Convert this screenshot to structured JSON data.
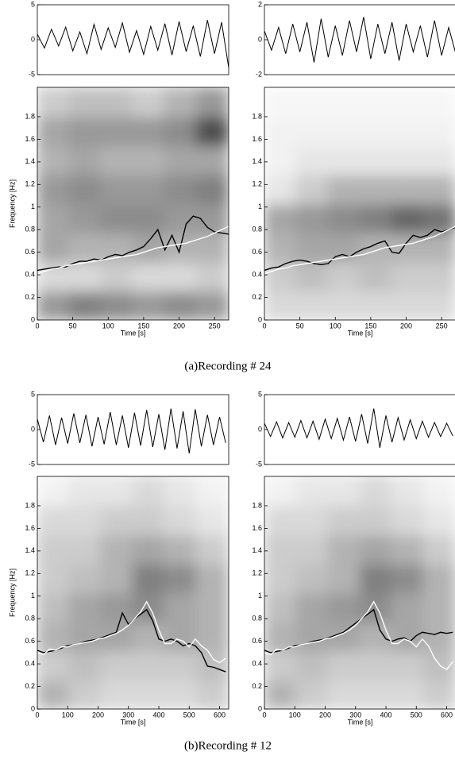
{
  "captions": [
    "(a)Recording # 24",
    "(b)Recording # 12"
  ],
  "chart_data": [
    {
      "type": "line",
      "xlim": [
        0,
        270
      ],
      "ylim": [
        -5,
        5
      ],
      "yticks": [
        -5,
        0,
        5
      ],
      "x": [
        0,
        10,
        20,
        30,
        40,
        50,
        60,
        70,
        80,
        90,
        100,
        110,
        120,
        130,
        140,
        150,
        160,
        170,
        180,
        190,
        200,
        210,
        220,
        230,
        240,
        250,
        260,
        270
      ],
      "series": [
        {
          "color": "#000000",
          "values": [
            0.8,
            -1.2,
            1.5,
            -0.9,
            1.8,
            -1.6,
            1.1,
            -2.0,
            2.2,
            -1.4,
            1.7,
            -1.1,
            2.4,
            -1.8,
            1.3,
            -2.1,
            1.9,
            -1.5,
            2.3,
            -2.2,
            2.6,
            -1.7,
            2.0,
            -2.4,
            2.8,
            -2.0,
            2.5,
            -4.0
          ]
        }
      ]
    },
    {
      "type": "line",
      "xlim": [
        0,
        270
      ],
      "ylim": [
        -2,
        2
      ],
      "yticks": [
        -2,
        0,
        2
      ],
      "x": [
        0,
        10,
        20,
        30,
        40,
        50,
        60,
        70,
        80,
        90,
        100,
        110,
        120,
        130,
        140,
        150,
        160,
        170,
        180,
        190,
        200,
        210,
        220,
        230,
        240,
        250,
        260,
        270
      ],
      "series": [
        {
          "color": "#000000",
          "values": [
            0.5,
            -0.6,
            0.7,
            -0.8,
            0.9,
            -0.7,
            1.0,
            -1.3,
            1.2,
            -1.0,
            0.8,
            -0.9,
            1.1,
            -0.7,
            1.3,
            -1.1,
            0.9,
            -0.8,
            1.0,
            -1.2,
            0.9,
            -0.7,
            0.8,
            -1.0,
            1.1,
            -0.9,
            0.7,
            -0.8
          ]
        }
      ]
    },
    {
      "type": "heatmap",
      "xlabel": "Time [s]",
      "ylabel": "Frequency [Hz]",
      "xlim": [
        0,
        270
      ],
      "ylim": [
        0,
        2.06
      ],
      "xticks": [
        0,
        50,
        100,
        150,
        200,
        250
      ],
      "yticks": [
        0,
        0.2,
        0.4,
        0.6,
        0.8,
        1,
        1.2,
        1.4,
        1.6,
        1.8
      ],
      "z": [
        [
          0.4,
          0.5,
          0.45,
          0.4,
          0.45,
          0.4
        ],
        [
          0.15,
          0.15,
          0.2,
          0.15,
          0.15,
          0.2
        ],
        [
          0.35,
          0.3,
          0.3,
          0.35,
          0.3,
          0.3
        ],
        [
          0.35,
          0.4,
          0.45,
          0.45,
          0.4,
          0.4
        ],
        [
          0.4,
          0.45,
          0.4,
          0.4,
          0.45,
          0.5
        ],
        [
          0.3,
          0.35,
          0.3,
          0.3,
          0.35,
          0.35
        ],
        [
          0.35,
          0.4,
          0.4,
          0.4,
          0.45,
          0.7
        ],
        [
          0.2,
          0.25,
          0.25,
          0.2,
          0.3,
          0.4
        ]
      ],
      "x": [
        0,
        10,
        20,
        30,
        40,
        50,
        60,
        70,
        80,
        90,
        100,
        110,
        120,
        130,
        140,
        150,
        160,
        170,
        180,
        190,
        200,
        210,
        220,
        230,
        240,
        250,
        260,
        270
      ],
      "series": [
        {
          "color": "#000000",
          "values": [
            0.44,
            0.45,
            0.46,
            0.47,
            0.47,
            0.5,
            0.52,
            0.52,
            0.54,
            0.53,
            0.56,
            0.58,
            0.57,
            0.6,
            0.62,
            0.65,
            0.72,
            0.8,
            0.62,
            0.75,
            0.6,
            0.85,
            0.92,
            0.9,
            0.82,
            0.78,
            0.77,
            0.76
          ]
        },
        {
          "color": "#ffffff",
          "values": [
            0.41,
            0.43,
            0.45,
            0.46,
            0.48,
            0.49,
            0.5,
            0.51,
            0.52,
            0.53,
            0.54,
            0.55,
            0.56,
            0.57,
            0.58,
            0.6,
            0.62,
            0.64,
            0.65,
            0.66,
            0.67,
            0.68,
            0.7,
            0.72,
            0.74,
            0.77,
            0.8,
            0.83
          ]
        }
      ]
    },
    {
      "type": "heatmap",
      "xlabel": "Time [s]",
      "xlim": [
        0,
        270
      ],
      "ylim": [
        0,
        2.06
      ],
      "xticks": [
        0,
        50,
        100,
        150,
        200,
        250
      ],
      "yticks": [
        0,
        0.2,
        0.4,
        0.6,
        0.8,
        1,
        1.2,
        1.4,
        1.6,
        1.8
      ],
      "z": [
        [
          0.15,
          0.15,
          0.15,
          0.15,
          0.15,
          0.15
        ],
        [
          0.2,
          0.25,
          0.2,
          0.25,
          0.2,
          0.2
        ],
        [
          0.3,
          0.35,
          0.35,
          0.3,
          0.3,
          0.3
        ],
        [
          0.35,
          0.4,
          0.45,
          0.5,
          0.6,
          0.55
        ],
        [
          0.1,
          0.2,
          0.3,
          0.3,
          0.3,
          0.3
        ],
        [
          0.05,
          0.1,
          0.1,
          0.1,
          0.1,
          0.1
        ],
        [
          0.05,
          0.05,
          0.05,
          0.05,
          0.05,
          0.05
        ],
        [
          0.03,
          0.03,
          0.03,
          0.03,
          0.03,
          0.03
        ]
      ],
      "x": [
        0,
        10,
        20,
        30,
        40,
        50,
        60,
        70,
        80,
        90,
        100,
        110,
        120,
        130,
        140,
        150,
        160,
        170,
        180,
        190,
        200,
        210,
        220,
        230,
        240,
        250,
        260,
        270
      ],
      "series": [
        {
          "color": "#000000",
          "values": [
            0.44,
            0.46,
            0.47,
            0.5,
            0.52,
            0.53,
            0.52,
            0.5,
            0.49,
            0.5,
            0.56,
            0.58,
            0.56,
            0.6,
            0.63,
            0.65,
            0.68,
            0.7,
            0.6,
            0.59,
            0.68,
            0.75,
            0.73,
            0.75,
            0.8,
            0.78,
            0.8,
            0.82
          ]
        },
        {
          "color": "#ffffff",
          "values": [
            0.41,
            0.43,
            0.45,
            0.46,
            0.48,
            0.49,
            0.5,
            0.51,
            0.52,
            0.53,
            0.54,
            0.55,
            0.56,
            0.57,
            0.58,
            0.6,
            0.62,
            0.64,
            0.65,
            0.66,
            0.67,
            0.68,
            0.7,
            0.72,
            0.74,
            0.77,
            0.8,
            0.83
          ]
        }
      ]
    },
    {
      "type": "line",
      "xlim": [
        0,
        630
      ],
      "ylim": [
        -5,
        5
      ],
      "yticks": [
        -5,
        0,
        5
      ],
      "x": [
        0,
        20,
        40,
        60,
        80,
        100,
        120,
        140,
        160,
        180,
        200,
        220,
        240,
        260,
        280,
        300,
        320,
        340,
        360,
        380,
        400,
        420,
        440,
        460,
        480,
        500,
        520,
        540,
        560,
        580,
        600,
        620
      ],
      "series": [
        {
          "color": "#000000",
          "values": [
            1.5,
            -1.8,
            2.0,
            -2.2,
            1.7,
            -2.0,
            2.3,
            -1.9,
            2.1,
            -2.4,
            1.8,
            -2.1,
            2.5,
            -2.2,
            2.0,
            -2.6,
            2.4,
            -2.3,
            2.8,
            -2.5,
            2.2,
            -2.9,
            3.0,
            -2.7,
            2.6,
            -3.4,
            2.9,
            -2.4,
            2.1,
            -2.2,
            1.8,
            -1.9
          ]
        }
      ]
    },
    {
      "type": "line",
      "xlim": [
        0,
        630
      ],
      "ylim": [
        -5,
        5
      ],
      "yticks": [
        -5,
        0,
        5
      ],
      "x": [
        0,
        20,
        40,
        60,
        80,
        100,
        120,
        140,
        160,
        180,
        200,
        220,
        240,
        260,
        280,
        300,
        320,
        340,
        360,
        380,
        400,
        420,
        440,
        460,
        480,
        500,
        520,
        540,
        560,
        580,
        600,
        620
      ],
      "series": [
        {
          "color": "#000000",
          "values": [
            0.9,
            -1.0,
            1.1,
            -1.2,
            1.0,
            -1.1,
            1.3,
            -1.2,
            1.2,
            -1.4,
            1.5,
            -1.3,
            1.6,
            -1.5,
            1.8,
            -1.7,
            2.2,
            -2.0,
            3.0,
            -2.6,
            2.0,
            -1.8,
            1.7,
            -1.5,
            1.4,
            -1.3,
            1.2,
            -1.1,
            1.0,
            -1.0,
            0.9,
            -0.9
          ]
        }
      ]
    },
    {
      "type": "heatmap",
      "xlabel": "Time [s]",
      "ylabel": "Frequency [Hz]",
      "xlim": [
        0,
        630
      ],
      "ylim": [
        0,
        2.06
      ],
      "xticks": [
        0,
        100,
        200,
        300,
        400,
        500,
        600
      ],
      "yticks": [
        0,
        0.2,
        0.4,
        0.6,
        0.8,
        1,
        1.2,
        1.4,
        1.6,
        1.8
      ],
      "z": [
        [
          0.3,
          0.2,
          0.15,
          0.15,
          0.15,
          0.2
        ],
        [
          0.2,
          0.25,
          0.2,
          0.2,
          0.2,
          0.25
        ],
        [
          0.3,
          0.35,
          0.35,
          0.3,
          0.35,
          0.3
        ],
        [
          0.25,
          0.35,
          0.4,
          0.45,
          0.35,
          0.3
        ],
        [
          0.2,
          0.25,
          0.3,
          0.5,
          0.45,
          0.3
        ],
        [
          0.2,
          0.2,
          0.3,
          0.35,
          0.3,
          0.2
        ],
        [
          0.15,
          0.15,
          0.2,
          0.2,
          0.15,
          0.1
        ],
        [
          0.05,
          0.1,
          0.1,
          0.15,
          0.1,
          0.05
        ]
      ],
      "x": [
        0,
        20,
        40,
        60,
        80,
        100,
        120,
        140,
        160,
        180,
        200,
        220,
        240,
        260,
        280,
        300,
        320,
        340,
        360,
        380,
        400,
        420,
        440,
        460,
        480,
        500,
        520,
        540,
        560,
        580,
        600,
        620
      ],
      "series": [
        {
          "color": "#000000",
          "values": [
            0.52,
            0.5,
            0.51,
            0.52,
            0.54,
            0.56,
            0.57,
            0.58,
            0.6,
            0.61,
            0.62,
            0.64,
            0.66,
            0.68,
            0.85,
            0.75,
            0.8,
            0.84,
            0.88,
            0.78,
            0.62,
            0.6,
            0.62,
            0.6,
            0.56,
            0.58,
            0.56,
            0.5,
            0.38,
            0.37,
            0.35,
            0.33
          ]
        },
        {
          "color": "#ffffff",
          "values": [
            0.5,
            0.48,
            0.53,
            0.52,
            0.55,
            0.55,
            0.57,
            0.58,
            0.59,
            0.6,
            0.62,
            0.63,
            0.65,
            0.67,
            0.7,
            0.74,
            0.8,
            0.86,
            0.95,
            0.85,
            0.7,
            0.58,
            0.58,
            0.62,
            0.6,
            0.55,
            0.62,
            0.56,
            0.52,
            0.44,
            0.41,
            0.45
          ]
        }
      ]
    },
    {
      "type": "heatmap",
      "xlabel": "Time [s]",
      "xlim": [
        0,
        630
      ],
      "ylim": [
        0,
        2.06
      ],
      "xticks": [
        0,
        100,
        200,
        300,
        400,
        500,
        600
      ],
      "yticks": [
        0,
        0.2,
        0.4,
        0.6,
        0.8,
        1,
        1.2,
        1.4,
        1.6,
        1.8
      ],
      "z": [
        [
          0.3,
          0.2,
          0.15,
          0.15,
          0.15,
          0.2
        ],
        [
          0.2,
          0.25,
          0.2,
          0.2,
          0.2,
          0.25
        ],
        [
          0.3,
          0.35,
          0.35,
          0.3,
          0.35,
          0.3
        ],
        [
          0.25,
          0.35,
          0.4,
          0.45,
          0.35,
          0.3
        ],
        [
          0.2,
          0.25,
          0.3,
          0.5,
          0.45,
          0.3
        ],
        [
          0.2,
          0.2,
          0.3,
          0.35,
          0.3,
          0.2
        ],
        [
          0.15,
          0.15,
          0.2,
          0.2,
          0.15,
          0.1
        ],
        [
          0.05,
          0.1,
          0.1,
          0.15,
          0.1,
          0.05
        ]
      ],
      "x": [
        0,
        20,
        40,
        60,
        80,
        100,
        120,
        140,
        160,
        180,
        200,
        220,
        240,
        260,
        280,
        300,
        320,
        340,
        360,
        380,
        400,
        420,
        440,
        460,
        480,
        500,
        520,
        540,
        560,
        580,
        600,
        620
      ],
      "series": [
        {
          "color": "#000000",
          "values": [
            0.52,
            0.5,
            0.51,
            0.52,
            0.54,
            0.56,
            0.57,
            0.58,
            0.6,
            0.61,
            0.62,
            0.64,
            0.66,
            0.68,
            0.72,
            0.76,
            0.8,
            0.84,
            0.88,
            0.7,
            0.62,
            0.6,
            0.62,
            0.63,
            0.6,
            0.65,
            0.68,
            0.67,
            0.66,
            0.68,
            0.67,
            0.68
          ]
        },
        {
          "color": "#ffffff",
          "values": [
            0.5,
            0.48,
            0.53,
            0.52,
            0.55,
            0.55,
            0.57,
            0.58,
            0.59,
            0.6,
            0.62,
            0.63,
            0.65,
            0.67,
            0.7,
            0.74,
            0.8,
            0.86,
            0.95,
            0.85,
            0.7,
            0.58,
            0.58,
            0.62,
            0.6,
            0.55,
            0.62,
            0.56,
            0.45,
            0.38,
            0.35,
            0.42
          ]
        }
      ]
    }
  ]
}
